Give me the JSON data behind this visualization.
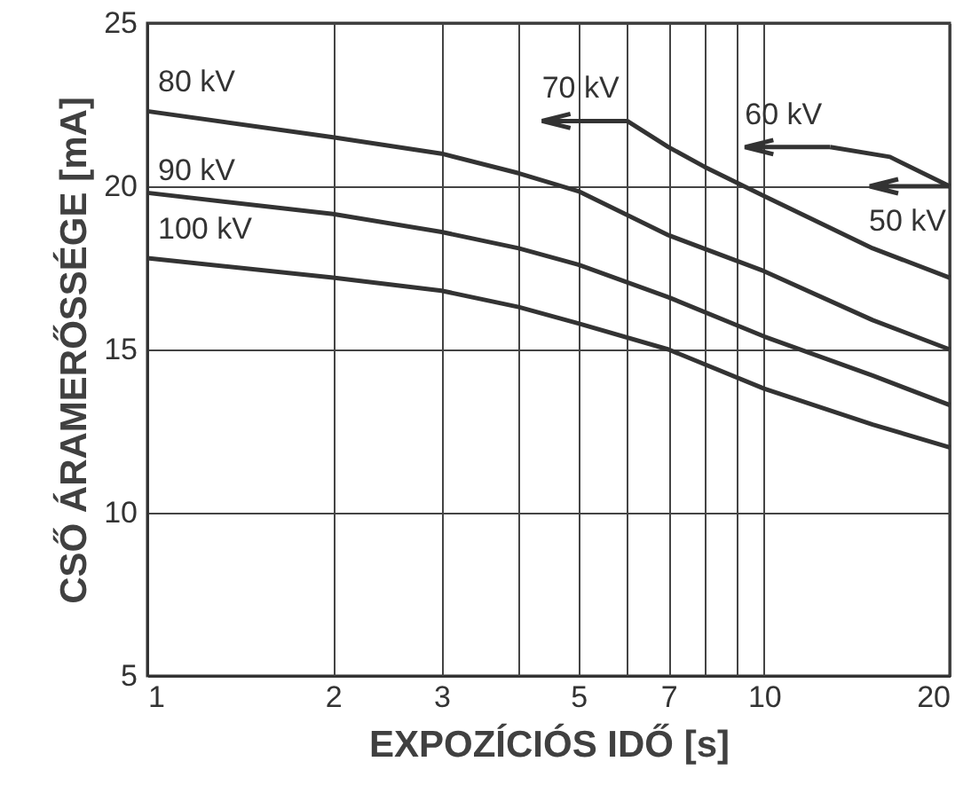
{
  "chart_data": {
    "type": "line",
    "xlabel": "EXPOZÍCIÓS IDŐ [s]",
    "ylabel": "CSŐ ÁRAMERŐSSÉGE [mA]",
    "log": "x",
    "grid": true,
    "marker": "none",
    "line_style": "solid",
    "xlim": [
      1,
      20
    ],
    "xticks": [
      1,
      2,
      3,
      {
        "value": 4,
        "label": null
      },
      5,
      {
        "value": 6,
        "label": null
      },
      7,
      {
        "value": 8,
        "label": null
      },
      {
        "value": 9,
        "label": null
      },
      10,
      20
    ],
    "ylim": [
      5,
      25
    ],
    "yticks": [
      5,
      10,
      15,
      20,
      25
    ],
    "series": [
      {
        "name": "80 kV",
        "color": "#333333",
        "x": [
          1,
          2,
          3,
          4,
          5,
          7,
          10,
          15,
          20
        ],
        "values": [
          22.3,
          21.5,
          21.0,
          20.4,
          19.85,
          18.5,
          17.4,
          15.9,
          15.0
        ]
      },
      {
        "name": "90 kV",
        "color": "#333333",
        "x": [
          1,
          2,
          3,
          4,
          5,
          7,
          10,
          15,
          20
        ],
        "values": [
          19.8,
          19.15,
          18.6,
          18.1,
          17.6,
          16.6,
          15.4,
          14.2,
          13.3
        ]
      },
      {
        "name": "100 kV",
        "color": "#333333",
        "x": [
          1,
          2,
          3,
          4,
          5,
          7,
          10,
          15,
          20
        ],
        "values": [
          17.8,
          17.2,
          16.8,
          16.3,
          15.8,
          15.0,
          13.8,
          12.7,
          12.0
        ]
      },
      {
        "name": "70 kV",
        "color": "#333333",
        "x": [
          6,
          7,
          8,
          10,
          15,
          20
        ],
        "values": [
          22.0,
          21.2,
          20.6,
          19.7,
          18.1,
          17.2
        ]
      },
      {
        "name": "60 kV",
        "color": "#333333",
        "x": [
          12.8,
          16,
          20
        ],
        "values": [
          21.2,
          20.9,
          20.0
        ]
      }
    ],
    "annotations": [
      {
        "text": "50 kV",
        "x": 20,
        "y": 20
      }
    ]
  }
}
